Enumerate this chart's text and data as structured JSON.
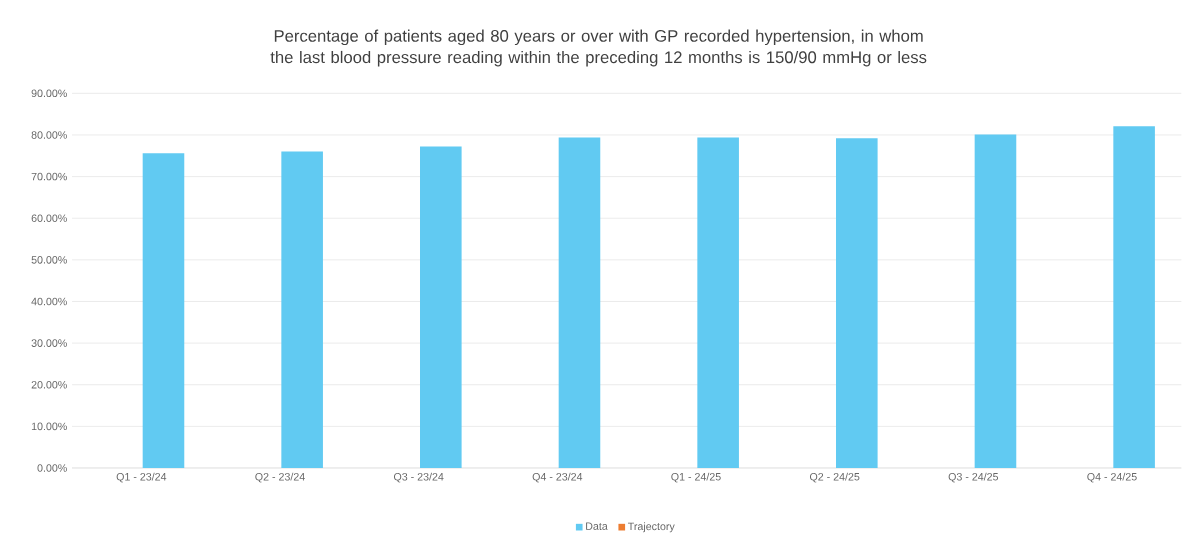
{
  "chart_data": {
    "type": "bar",
    "title": "Percentage of patients aged 80 years or over with GP recorded hypertension, in whom the last blood pressure reading within the preceding 12 months is 150/90 mmHg or less",
    "categories": [
      "Q1 - 23/24",
      "Q2 - 23/24",
      "Q3 - 23/24",
      "Q4 - 23/24",
      "Q1 - 24/25",
      "Q2 - 24/25",
      "Q3 - 24/25",
      "Q4 - 24/25"
    ],
    "series": [
      {
        "name": "Data",
        "color": "#61caf2",
        "values": [
          75.6,
          76.0,
          77.2,
          79.4,
          79.4,
          79.2,
          80.1,
          82.1
        ]
      },
      {
        "name": "Trajectory",
        "color": "#ed7d31",
        "values": [
          null,
          null,
          null,
          null,
          null,
          null,
          null,
          null
        ]
      }
    ],
    "ylim": [
      0,
      90
    ],
    "yticks": [
      {
        "value": 0,
        "label": "0.00%"
      },
      {
        "value": 10,
        "label": "10.00%"
      },
      {
        "value": 20,
        "label": "20.00%"
      },
      {
        "value": 30,
        "label": "30.00%"
      },
      {
        "value": 40,
        "label": "40.00%"
      },
      {
        "value": 50,
        "label": "50.00%"
      },
      {
        "value": 60,
        "label": "60.00%"
      },
      {
        "value": 70,
        "label": "70.00%"
      },
      {
        "value": 80,
        "label": "80.00%"
      },
      {
        "value": 90,
        "label": "90.00%"
      }
    ],
    "grid": "y",
    "legend": "bottom"
  }
}
